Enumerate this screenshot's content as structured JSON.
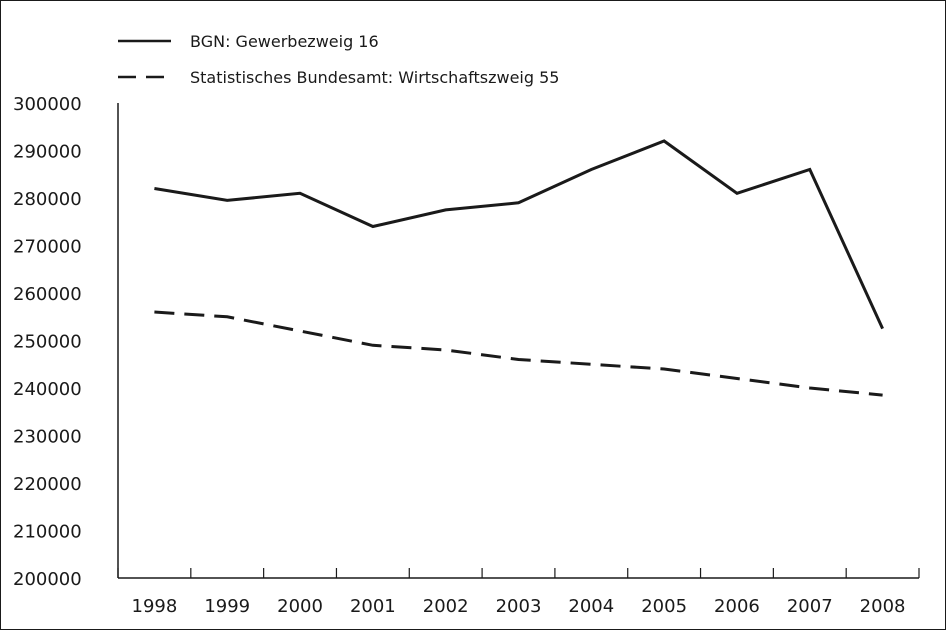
{
  "chart_data": {
    "type": "line",
    "title": "",
    "xlabel": "",
    "ylabel": "",
    "x": [
      "1998",
      "1999",
      "2000",
      "2001",
      "2002",
      "2003",
      "2004",
      "2005",
      "2006",
      "2007",
      "2008"
    ],
    "ylim": [
      200000,
      300000
    ],
    "yticks": [
      "200000",
      "210000",
      "220000",
      "230000",
      "240000",
      "250000",
      "260000",
      "270000",
      "280000",
      "290000",
      "300000"
    ],
    "grid": false,
    "legend_position": "top-left",
    "series": [
      {
        "name": "BGN: Gewerbezweig 16",
        "style": "solid",
        "color": "#1a1a1a",
        "values": [
          282000,
          279500,
          281000,
          274000,
          277500,
          279000,
          286000,
          292000,
          281000,
          286000,
          252500
        ]
      },
      {
        "name": "Statistisches Bundesamt: Wirtschaftszweig 55",
        "style": "dashed",
        "color": "#1a1a1a",
        "values": [
          256000,
          255000,
          252000,
          249000,
          248000,
          246000,
          245000,
          244000,
          242000,
          240000,
          238500
        ]
      }
    ]
  }
}
